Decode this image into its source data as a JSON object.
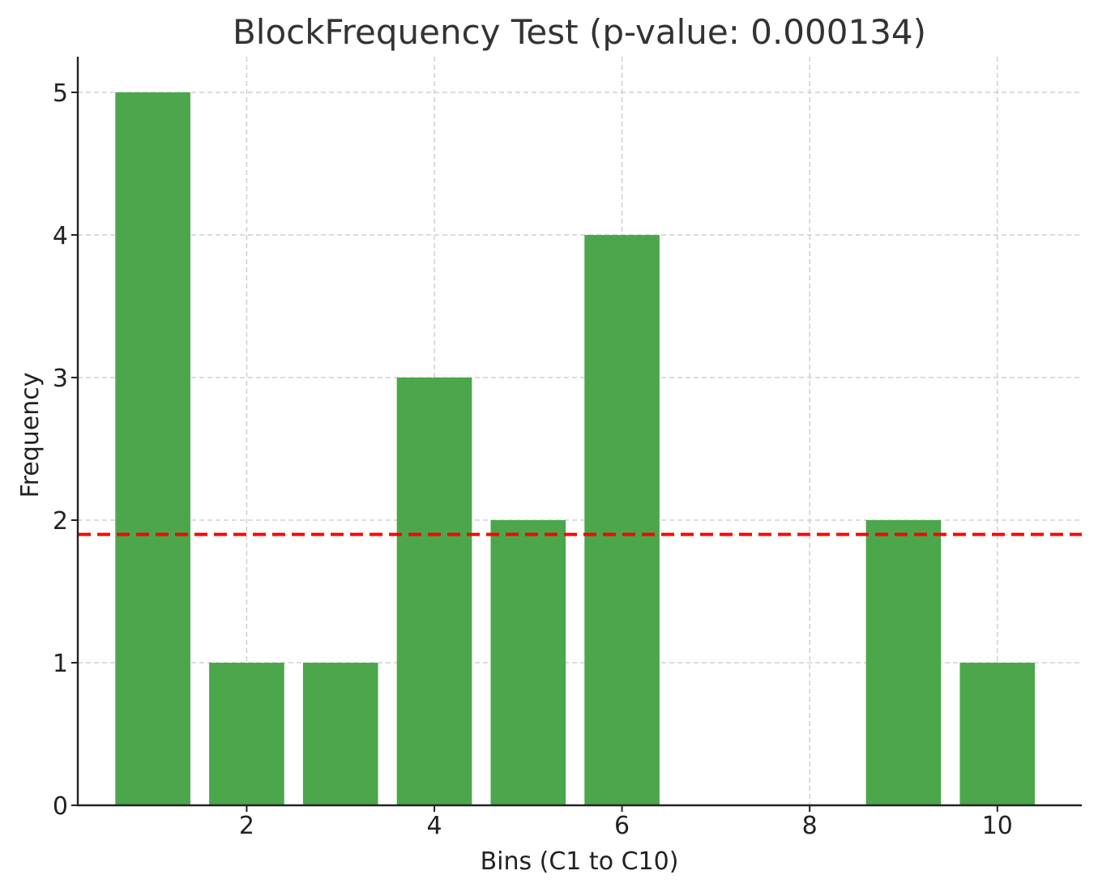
{
  "chart_data": {
    "type": "bar",
    "title": "BlockFrequency Test (p-value: 0.000134)",
    "xlabel": "Bins (C1 to C10)",
    "ylabel": "Frequency",
    "x": [
      1,
      2,
      3,
      4,
      5,
      6,
      7,
      8,
      9,
      10
    ],
    "values": [
      5,
      1,
      1,
      3,
      2,
      4,
      0,
      0,
      2,
      1
    ],
    "bar_color": "#4ca64c",
    "reference_line": {
      "y": 1.9,
      "color": "#ff0000",
      "style": "dashed"
    },
    "xlim": [
      0.2,
      10.9
    ],
    "ylim": [
      0,
      5.25
    ],
    "xticks": [
      2,
      4,
      6,
      8,
      10
    ],
    "yticks": [
      0,
      1,
      2,
      3,
      4,
      5
    ],
    "grid": true
  }
}
